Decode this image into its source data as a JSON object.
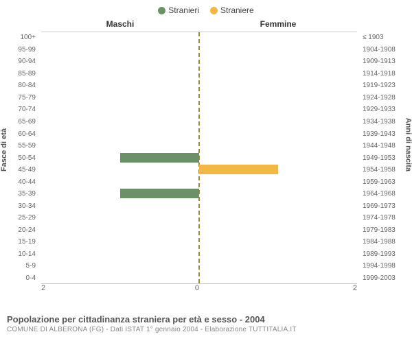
{
  "legend": {
    "items": [
      {
        "label": "Stranieri",
        "color": "#6b9166"
      },
      {
        "label": "Straniere",
        "color": "#f3b744"
      }
    ]
  },
  "columns": {
    "left": "Maschi",
    "right": "Femmine"
  },
  "axis_titles": {
    "left": "Fasce di età",
    "right": "Anni di nascita"
  },
  "chart": {
    "type": "population-pyramid",
    "xlim": 2,
    "xticks_left": [
      "2",
      "0"
    ],
    "xticks_right": [
      "0",
      "2"
    ],
    "center_color": "#9a8b3a",
    "grid_color": "#cccccc",
    "background_color": "#ffffff",
    "bar_colors": {
      "left": "#6b9166",
      "right": "#f3b744"
    },
    "row_label_color": "#666666",
    "row_label_fontsize": 10,
    "rows": [
      {
        "age": "100+",
        "birth": "≤ 1903",
        "male": 0,
        "female": 0
      },
      {
        "age": "95-99",
        "birth": "1904-1908",
        "male": 0,
        "female": 0
      },
      {
        "age": "90-94",
        "birth": "1909-1913",
        "male": 0,
        "female": 0
      },
      {
        "age": "85-89",
        "birth": "1914-1918",
        "male": 0,
        "female": 0
      },
      {
        "age": "80-84",
        "birth": "1919-1923",
        "male": 0,
        "female": 0
      },
      {
        "age": "75-79",
        "birth": "1924-1928",
        "male": 0,
        "female": 0
      },
      {
        "age": "70-74",
        "birth": "1929-1933",
        "male": 0,
        "female": 0
      },
      {
        "age": "65-69",
        "birth": "1934-1938",
        "male": 0,
        "female": 0
      },
      {
        "age": "60-64",
        "birth": "1939-1943",
        "male": 0,
        "female": 0
      },
      {
        "age": "55-59",
        "birth": "1944-1948",
        "male": 0,
        "female": 0
      },
      {
        "age": "50-54",
        "birth": "1949-1953",
        "male": 1,
        "female": 0
      },
      {
        "age": "45-49",
        "birth": "1954-1958",
        "male": 0,
        "female": 1
      },
      {
        "age": "40-44",
        "birth": "1959-1963",
        "male": 0,
        "female": 0
      },
      {
        "age": "35-39",
        "birth": "1964-1968",
        "male": 1,
        "female": 0
      },
      {
        "age": "30-34",
        "birth": "1969-1973",
        "male": 0,
        "female": 0
      },
      {
        "age": "25-29",
        "birth": "1974-1978",
        "male": 0,
        "female": 0
      },
      {
        "age": "20-24",
        "birth": "1979-1983",
        "male": 0,
        "female": 0
      },
      {
        "age": "15-19",
        "birth": "1984-1988",
        "male": 0,
        "female": 0
      },
      {
        "age": "10-14",
        "birth": "1989-1993",
        "male": 0,
        "female": 0
      },
      {
        "age": "5-9",
        "birth": "1994-1998",
        "male": 0,
        "female": 0
      },
      {
        "age": "0-4",
        "birth": "1999-2003",
        "male": 0,
        "female": 0
      }
    ]
  },
  "footer": {
    "title": "Popolazione per cittadinanza straniera per età e sesso - 2004",
    "subtitle": "COMUNE DI ALBERONA (FG) - Dati ISTAT 1° gennaio 2004 - Elaborazione TUTTITALIA.IT"
  }
}
